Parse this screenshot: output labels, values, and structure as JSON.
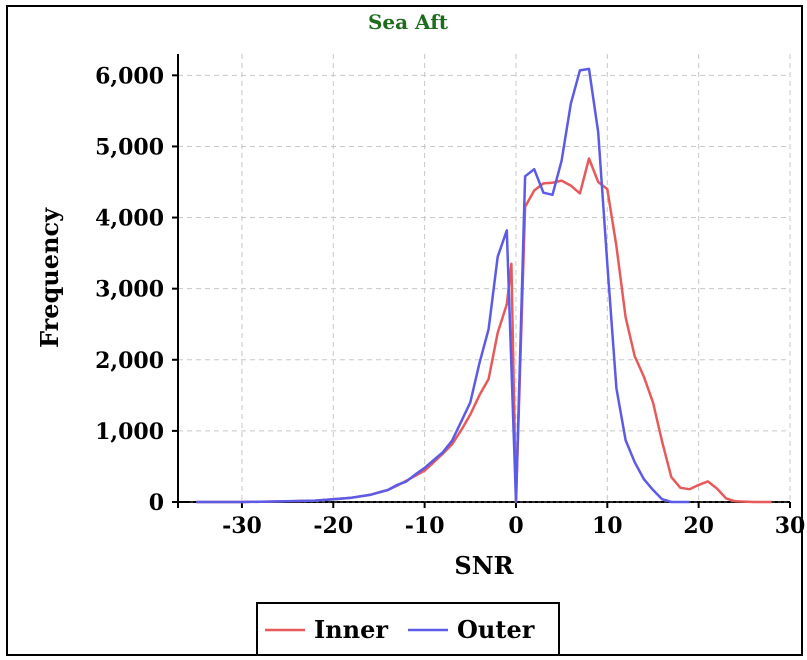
{
  "chart_data": {
    "type": "line",
    "title": "Sea Aft",
    "xlabel": "SNR",
    "ylabel": "Frequency",
    "xlim": [
      -37,
      30
    ],
    "ylim": [
      0,
      6300
    ],
    "xticks": [
      -30,
      -20,
      -10,
      0,
      10,
      20,
      30
    ],
    "xtick_labels": [
      "-30",
      "-20",
      "-10",
      "0",
      "10",
      "20",
      "30"
    ],
    "yticks": [
      0,
      1000,
      2000,
      3000,
      4000,
      5000,
      6000
    ],
    "ytick_labels": [
      "0",
      "1,000",
      "2,000",
      "3,000",
      "4,000",
      "5,000",
      "6,000"
    ],
    "grid": true,
    "legend_position": "bottom-center",
    "series": [
      {
        "name": "Inner",
        "color": "#e85a5a",
        "points": [
          [
            -35,
            0
          ],
          [
            -30,
            0
          ],
          [
            -25,
            10
          ],
          [
            -22,
            20
          ],
          [
            -20,
            40
          ],
          [
            -18,
            60
          ],
          [
            -16,
            100
          ],
          [
            -14,
            170
          ],
          [
            -13,
            230
          ],
          [
            -12,
            300
          ],
          [
            -11,
            370
          ],
          [
            -10,
            440
          ],
          [
            -9,
            560
          ],
          [
            -8,
            680
          ],
          [
            -7,
            810
          ],
          [
            -6,
            1010
          ],
          [
            -5,
            1230
          ],
          [
            -4,
            1500
          ],
          [
            -3,
            1730
          ],
          [
            -2,
            2380
          ],
          [
            -1,
            2780
          ],
          [
            -0.5,
            3350
          ],
          [
            0,
            0
          ],
          [
            1,
            4150
          ],
          [
            2,
            4380
          ],
          [
            3,
            4480
          ],
          [
            4,
            4490
          ],
          [
            5,
            4520
          ],
          [
            6,
            4450
          ],
          [
            7,
            4340
          ],
          [
            8,
            4830
          ],
          [
            9,
            4500
          ],
          [
            10,
            4400
          ],
          [
            11,
            3600
          ],
          [
            12,
            2600
          ],
          [
            13,
            2050
          ],
          [
            14,
            1760
          ],
          [
            15,
            1400
          ],
          [
            16,
            850
          ],
          [
            17,
            350
          ],
          [
            18,
            200
          ],
          [
            19,
            180
          ],
          [
            20,
            240
          ],
          [
            21,
            290
          ],
          [
            22,
            190
          ],
          [
            23,
            50
          ],
          [
            24,
            10
          ],
          [
            26,
            0
          ],
          [
            28,
            0
          ]
        ]
      },
      {
        "name": "Outer",
        "color": "#5b5be8",
        "points": [
          [
            -35,
            0
          ],
          [
            -30,
            0
          ],
          [
            -25,
            10
          ],
          [
            -22,
            20
          ],
          [
            -20,
            40
          ],
          [
            -18,
            60
          ],
          [
            -16,
            100
          ],
          [
            -14,
            170
          ],
          [
            -13,
            240
          ],
          [
            -12,
            290
          ],
          [
            -11,
            390
          ],
          [
            -10,
            480
          ],
          [
            -9,
            590
          ],
          [
            -8,
            700
          ],
          [
            -7,
            860
          ],
          [
            -6,
            1130
          ],
          [
            -5,
            1400
          ],
          [
            -4,
            1950
          ],
          [
            -3,
            2430
          ],
          [
            -2,
            3450
          ],
          [
            -1,
            3820
          ],
          [
            0,
            0
          ],
          [
            1,
            4580
          ],
          [
            2,
            4680
          ],
          [
            3,
            4350
          ],
          [
            4,
            4320
          ],
          [
            5,
            4800
          ],
          [
            6,
            5600
          ],
          [
            7,
            6070
          ],
          [
            8,
            6090
          ],
          [
            9,
            5200
          ],
          [
            10,
            3350
          ],
          [
            11,
            1600
          ],
          [
            12,
            870
          ],
          [
            13,
            560
          ],
          [
            14,
            320
          ],
          [
            15,
            170
          ],
          [
            16,
            40
          ],
          [
            17,
            0
          ],
          [
            19,
            0
          ]
        ]
      }
    ]
  }
}
